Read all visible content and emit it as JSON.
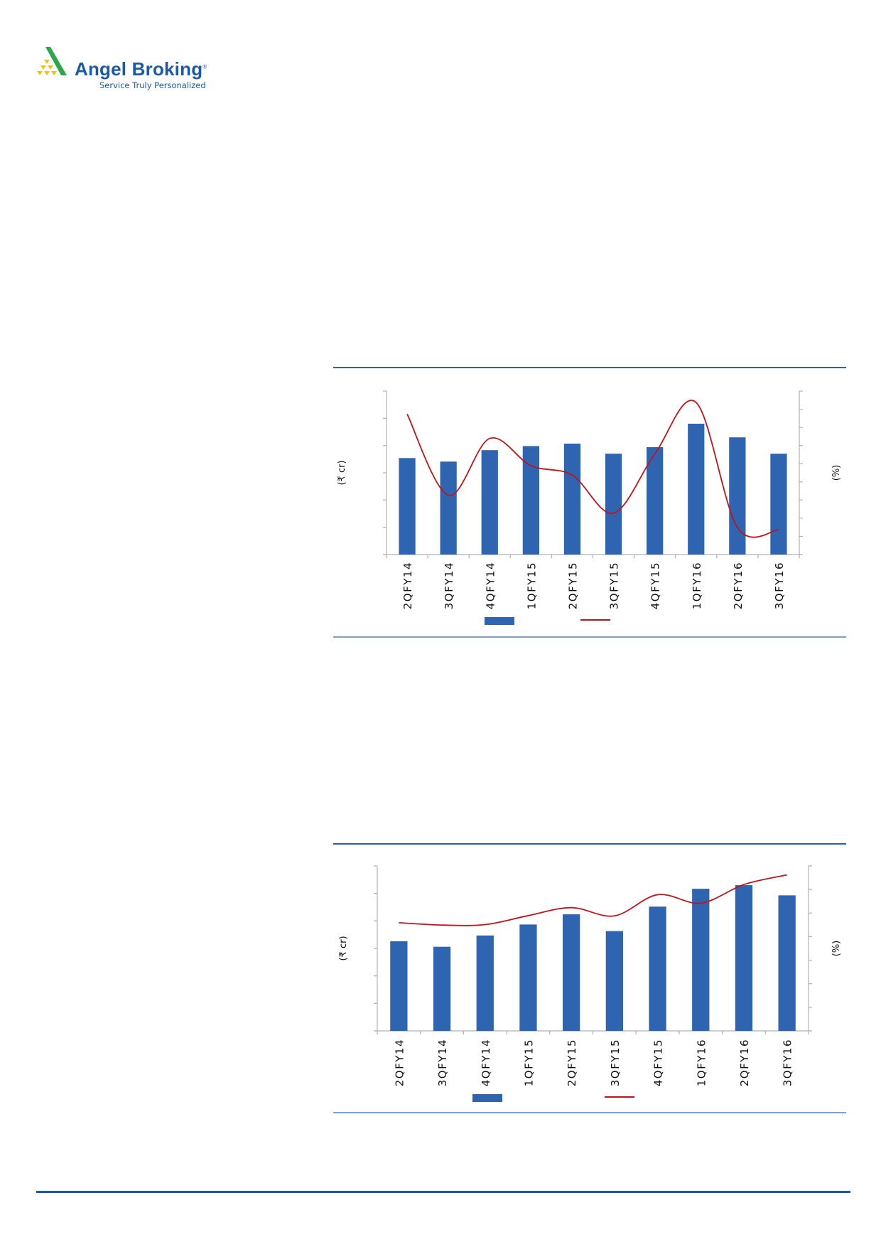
{
  "logo": {
    "brand": "Angel Broking",
    "registered_mark": "®",
    "tagline": "Service Truly Personalized",
    "colors": {
      "blue": "#1a5aa6",
      "green": "#2aa84a",
      "yellow": "#f2c01c"
    }
  },
  "colors": {
    "bar": "#2f65b0",
    "line": "#c0141b",
    "rule": "#2f5fa8",
    "axis": "#b0b0b0"
  },
  "chart_data": [
    {
      "type": "bar+line",
      "title": "",
      "categories": [
        "2QFY14",
        "3QFY14",
        "4QFY14",
        "1QFY15",
        "2QFY15",
        "3QFY15",
        "4QFY15",
        "1QFY16",
        "2QFY16",
        "3QFY16"
      ],
      "series": [
        {
          "type": "bar",
          "axis": "left",
          "values": [
            3.54,
            3.41,
            3.83,
            3.98,
            4.07,
            3.7,
            3.94,
            4.8,
            4.3,
            3.7
          ]
        },
        {
          "type": "line",
          "axis": "right",
          "smooth": true,
          "values": [
            7.73,
            3.26,
            6.39,
            4.89,
            4.37,
            2.28,
            5.54,
            8.37,
            1.5,
            1.37
          ]
        }
      ],
      "ylabel": "(₹ cr)",
      "y2label": "(%)",
      "ylim": [
        0,
        6
      ],
      "y2lim": [
        0,
        9
      ],
      "tick_labels_shown": false,
      "grid": false,
      "legend": "bottom"
    },
    {
      "type": "bar+line",
      "title": "",
      "categories": [
        "2QFY14",
        "3QFY14",
        "4QFY14",
        "1QFY15",
        "2QFY15",
        "3QFY15",
        "4QFY15",
        "1QFY16",
        "2QFY16",
        "3QFY16"
      ],
      "series": [
        {
          "type": "bar",
          "axis": "left",
          "values": [
            3.26,
            3.06,
            3.47,
            3.87,
            4.24,
            3.63,
            4.52,
            5.17,
            5.3,
            4.93
          ]
        },
        {
          "type": "line",
          "axis": "right",
          "smooth": true,
          "values": [
            4.59,
            4.49,
            4.51,
            4.89,
            5.23,
            4.88,
            5.78,
            5.42,
            6.21,
            6.62
          ]
        }
      ],
      "ylabel": "(₹ cr)",
      "y2label": "(%)",
      "ylim": [
        0,
        6
      ],
      "y2lim": [
        0,
        7
      ],
      "tick_labels_shown": false,
      "grid": false,
      "legend": "bottom"
    }
  ]
}
